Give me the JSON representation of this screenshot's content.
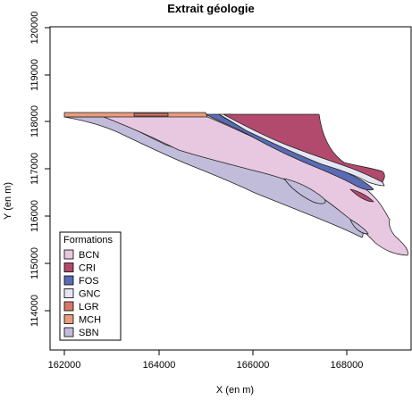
{
  "map": {
    "title": "Extrait géologie",
    "xlabel": "X (en m)",
    "ylabel": "Y (en m)",
    "x_ticks": [
      "162000",
      "164000",
      "166000",
      "168000"
    ],
    "y_ticks": [
      "114000",
      "115000",
      "116000",
      "117000",
      "118000",
      "119000",
      "120000"
    ],
    "legend": {
      "title": "Formations",
      "items": [
        {
          "code": "BCN",
          "color": "#e8c8e0"
        },
        {
          "code": "CRI",
          "color": "#b24a6e"
        },
        {
          "code": "FOS",
          "color": "#5a6bb5"
        },
        {
          "code": "GNC",
          "color": "#e6e6f2"
        },
        {
          "code": "LGR",
          "color": "#d9776a"
        },
        {
          "code": "MCH",
          "color": "#e79c7e"
        },
        {
          "code": "SBN",
          "color": "#c0bcd9"
        }
      ]
    }
  }
}
